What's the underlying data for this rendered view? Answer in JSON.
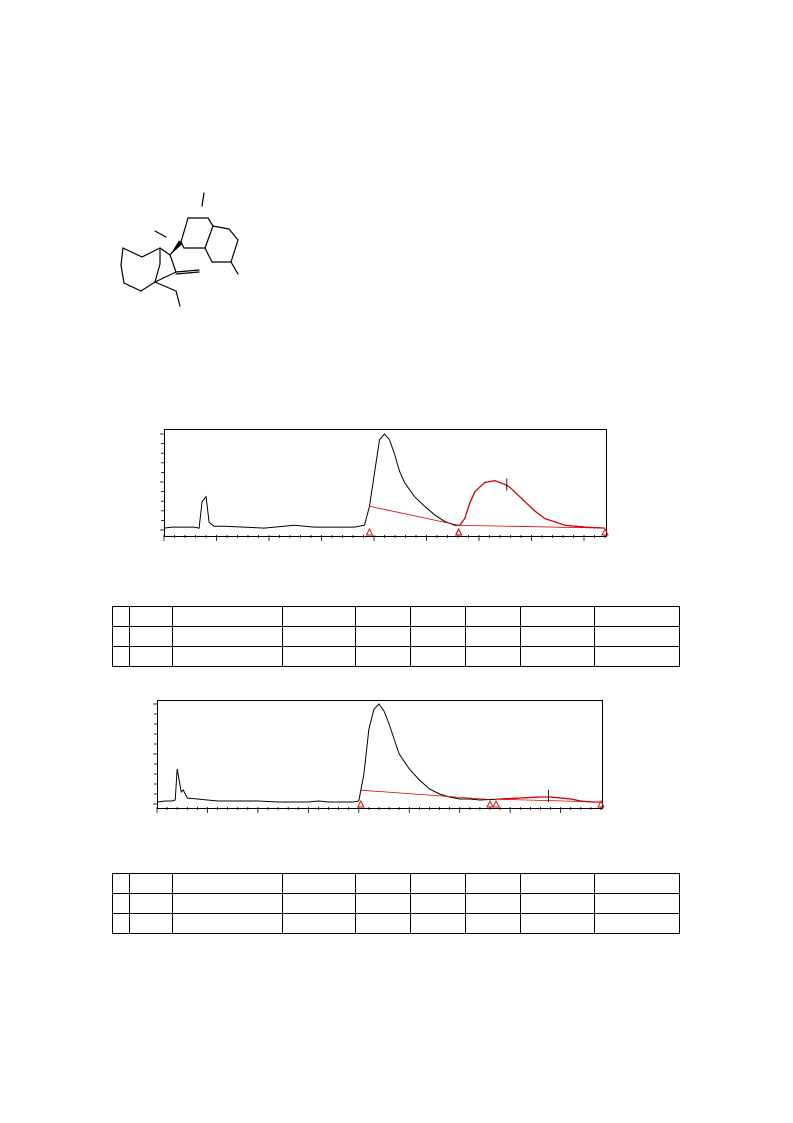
{
  "structure": {
    "name": "molecule-structure",
    "bonds": [
      [
        204,
        193,
        202,
        206
      ],
      [
        155,
        231,
        166,
        237
      ],
      [
        188,
        218,
        207,
        218
      ],
      [
        188,
        218,
        181,
        242
      ],
      [
        181,
        242,
        184,
        248
      ],
      [
        184,
        248,
        205,
        248
      ],
      [
        205,
        248,
        213,
        226
      ],
      [
        213,
        226,
        208,
        218
      ],
      [
        213,
        226,
        229,
        229
      ],
      [
        229,
        229,
        238,
        240
      ],
      [
        238,
        240,
        231,
        262
      ],
      [
        231,
        262,
        212,
        262
      ],
      [
        212,
        262,
        205,
        248
      ],
      [
        231,
        262,
        238,
        274
      ],
      [
        181,
        242,
        170,
        255
      ],
      [
        170,
        255,
        160,
        248
      ],
      [
        160,
        248,
        142,
        257
      ],
      [
        142,
        257,
        123,
        248
      ],
      [
        123,
        248,
        121,
        265
      ],
      [
        121,
        265,
        124,
        283
      ],
      [
        124,
        283,
        141,
        291
      ],
      [
        141,
        291,
        155,
        282
      ],
      [
        155,
        282,
        160,
        264
      ],
      [
        160,
        264,
        160,
        248
      ],
      [
        170,
        255,
        176,
        272
      ],
      [
        176,
        272,
        155,
        282
      ],
      [
        176,
        272,
        199,
        270
      ],
      [
        176,
        274,
        199,
        272
      ],
      [
        155,
        282,
        176,
        291
      ],
      [
        176,
        291,
        180,
        306
      ]
    ],
    "wedges": [
      [
        170,
        255,
        181,
        242
      ]
    ]
  },
  "chromatograms": [
    {
      "name": "chromatogram-1",
      "chart_data": {
        "type": "line",
        "series": [
          {
            "x": [
              0,
              8,
              15,
              30,
              35,
              38,
              42,
              45,
              50,
              60,
              80,
              100,
              130,
              150,
              170,
              190,
              200,
              205,
              210,
              215,
              220,
              225,
              230,
              235,
              240,
              250,
              260,
              270,
              280,
              290,
              295,
              300,
              305,
              310,
              320,
              330,
              340,
              345,
              350,
              360,
              370,
              380,
              400,
              420,
              440
            ],
            "y": [
              2,
              3,
              3,
              3,
              2,
              30,
              35,
              8,
              4,
              4,
              3,
              2,
              5,
              3,
              3,
              3,
              5,
              25,
              60,
              95,
              101,
              95,
              80,
              62,
              50,
              35,
              25,
              16,
              9,
              5,
              5,
              12,
              28,
              40,
              50,
              52,
              48,
              45,
              40,
              30,
              20,
              12,
              5,
              3,
              2
            ]
          }
        ]
      }
    },
    {
      "name": "chromatogram-2",
      "chart_data": {
        "type": "line",
        "series": [
          {
            "x": [
              0,
              8,
              15,
              18,
              20,
              24,
              26,
              30,
              40,
              60,
              80,
              100,
              120,
              140,
              150,
              160,
              170,
              180,
              190,
              195,
              200,
              205,
              210,
              215,
              220,
              225,
              230,
              235,
              240,
              250,
              260,
              270,
              280,
              290,
              300,
              310,
              320,
              340,
              360,
              380,
              390,
              400,
              410,
              420,
              430,
              440
            ],
            "y": [
              2,
              3,
              3,
              4,
              35,
              12,
              14,
              6,
              5,
              3,
              3,
              3,
              2,
              2,
              2,
              3,
              2,
              2,
              2,
              2,
              3,
              30,
              75,
              95,
              100,
              93,
              80,
              65,
              50,
              35,
              24,
              15,
              10,
              7,
              5,
              5,
              4,
              5,
              6,
              7,
              7,
              6,
              5,
              3,
              2,
              2
            ]
          }
        ]
      }
    }
  ],
  "tables": [
    {
      "name": "peak-table-1",
      "rows": [
        [
          "",
          "",
          "",
          "",
          "",
          "",
          "",
          "",
          ""
        ],
        [
          "",
          "",
          "",
          "",
          "",
          "",
          "",
          "",
          ""
        ],
        [
          "",
          "",
          "",
          "",
          "",
          "",
          "",
          "",
          ""
        ]
      ]
    },
    {
      "name": "peak-table-2",
      "rows": [
        [
          "",
          "",
          "",
          "",
          "",
          "",
          "",
          "",
          ""
        ],
        [
          "",
          "",
          "",
          "",
          "",
          "",
          "",
          "",
          ""
        ],
        [
          "",
          "",
          "",
          "",
          "",
          "",
          "",
          "",
          ""
        ]
      ]
    }
  ]
}
